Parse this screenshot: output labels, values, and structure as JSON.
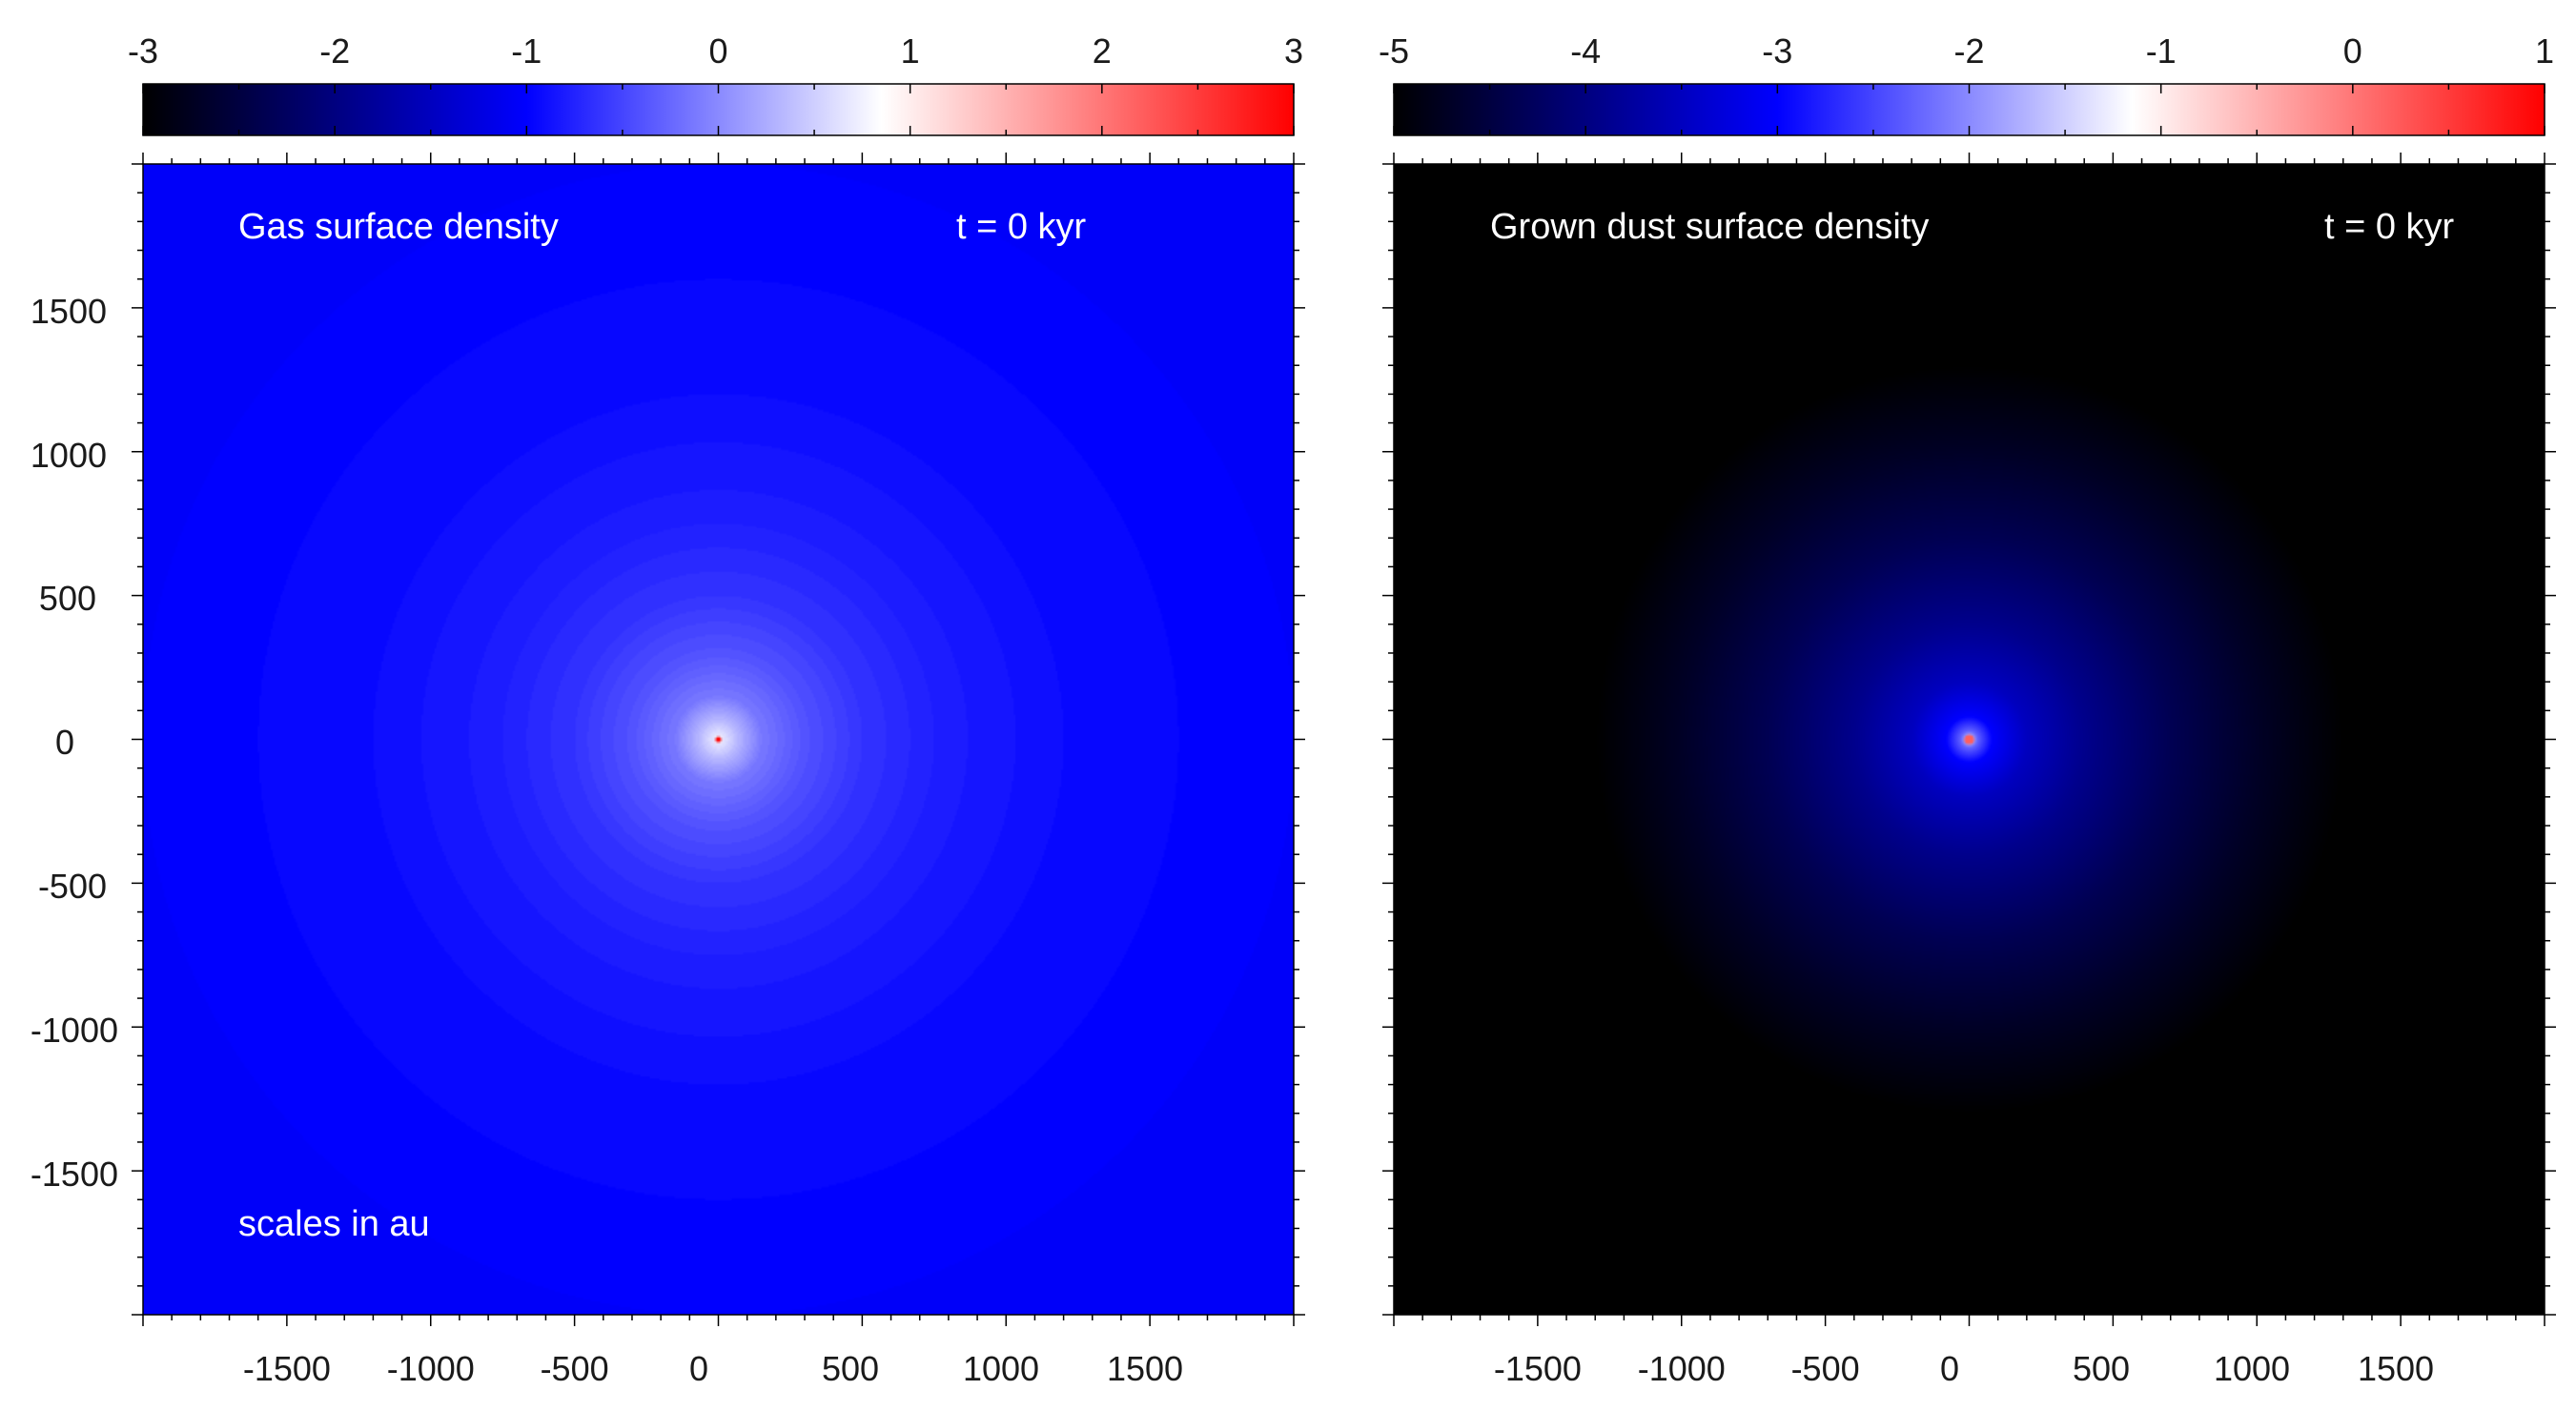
{
  "chart_data": [
    {
      "type": "heatmap",
      "annotations": {
        "title": "Gas surface density",
        "time": "t = 0 kyr",
        "scale_note": "scales in au"
      },
      "colorbar": {
        "ticks": [
          "-3",
          "-2",
          "-1",
          "0",
          "1",
          "2",
          "3"
        ],
        "min": -3,
        "max": 3,
        "stops": [
          {
            "v": -3,
            "color": "#000000"
          },
          {
            "v": -1,
            "color": "#0000ff"
          },
          {
            "v": 0.85,
            "color": "#ffffff"
          },
          {
            "v": 3,
            "color": "#ff0000"
          }
        ]
      },
      "x_ticks": [
        "-1500",
        "-1000",
        "-500",
        "0",
        "500",
        "1000",
        "1500"
      ],
      "y_ticks": [
        "1500",
        "1000",
        "500",
        "0",
        "-500",
        "-1000",
        "-1500"
      ],
      "xlim": [
        -2000,
        2000
      ],
      "ylim": [
        -2000,
        2000
      ],
      "show_y_labels": true,
      "field": {
        "center": [
          0,
          0
        ],
        "radial_profile": [
          {
            "r": 0,
            "value": 0.8
          },
          {
            "r": 60,
            "value": 0.4
          },
          {
            "r": 150,
            "value": -0.1
          },
          {
            "r": 300,
            "value": -0.38
          },
          {
            "r": 500,
            "value": -0.6
          },
          {
            "r": 800,
            "value": -0.78
          },
          {
            "r": 1200,
            "value": -0.9
          },
          {
            "r": 2000,
            "value": -1.0
          },
          {
            "r": 3000,
            "value": -1.02
          }
        ],
        "step": 0.05,
        "central_value": 3
      }
    },
    {
      "type": "heatmap",
      "annotations": {
        "title": "Grown dust surface density",
        "time": "t = 0 kyr"
      },
      "colorbar": {
        "ticks": [
          "-5",
          "-4",
          "-3",
          "-2",
          "-1",
          "0",
          "1"
        ],
        "min": -5,
        "max": 1,
        "stops": [
          {
            "v": -5,
            "color": "#000000"
          },
          {
            "v": -3,
            "color": "#0000ff"
          },
          {
            "v": -1.15,
            "color": "#ffffff"
          },
          {
            "v": 1,
            "color": "#ff0000"
          }
        ]
      },
      "x_ticks": [
        "-1500",
        "-1000",
        "-500",
        "0",
        "500",
        "1000",
        "1500"
      ],
      "xlim": [
        -2000,
        2000
      ],
      "ylim": [
        -2000,
        2000
      ],
      "show_y_labels": false,
      "field": {
        "center": [
          0,
          0
        ],
        "radial_profile": [
          {
            "r": 0,
            "value": -1.4
          },
          {
            "r": 30,
            "value": -2.3
          },
          {
            "r": 80,
            "value": -3.0
          },
          {
            "r": 200,
            "value": -3.5
          },
          {
            "r": 400,
            "value": -3.9
          },
          {
            "r": 700,
            "value": -4.35
          },
          {
            "r": 1000,
            "value": -4.7
          },
          {
            "r": 1300,
            "value": -5.0
          },
          {
            "r": 3000,
            "value": -5.0
          }
        ],
        "step": 0,
        "central_value": 0.2
      }
    }
  ]
}
